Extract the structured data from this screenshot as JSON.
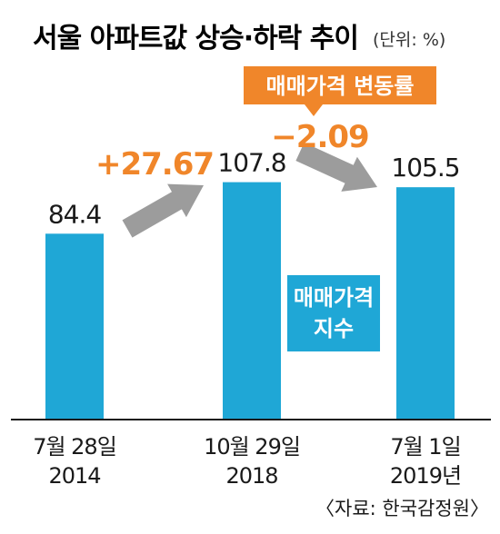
{
  "chart_data": {
    "type": "bar",
    "title": "서울 아파트값 상승·하락 추이",
    "unit_note": "(단위: %)",
    "categories": [
      {
        "line1": "7월 28일",
        "line2": "2014"
      },
      {
        "line1": "10월 29일",
        "line2": "2018"
      },
      {
        "line1": "7월 1일",
        "line2": "2019년"
      }
    ],
    "series": [
      {
        "name": "매매가격 지수",
        "values": [
          84.4,
          107.8,
          105.5
        ]
      }
    ],
    "value_labels": [
      "84.4",
      "107.8",
      "105.5"
    ],
    "changes": [
      {
        "label": "+27.67",
        "from": 0,
        "to": 1
      },
      {
        "label": "−2.09",
        "from": 1,
        "to": 2
      }
    ],
    "change_legend": "매매가격 변동률",
    "series_legend_lines": [
      "매매가격",
      "지수"
    ],
    "source": "〈자료: 한국감정원〉",
    "ylim": [
      0,
      115
    ],
    "colors": {
      "bar": "#1fa7d6",
      "arrow": "#9c9c9c",
      "accent": "#f0862a",
      "text": "#1a1a1a"
    }
  }
}
